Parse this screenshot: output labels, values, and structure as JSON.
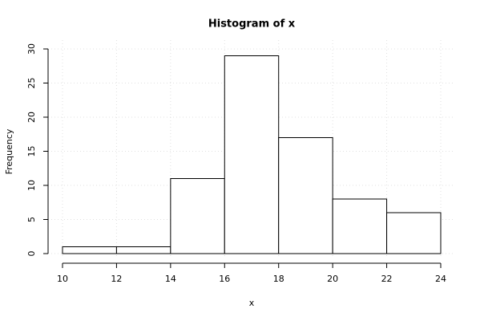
{
  "chart_data": {
    "type": "histogram",
    "title": "Histogram of x",
    "x_label": "x",
    "y_label": "Frequency",
    "bins": [
      10,
      12,
      14,
      16,
      18,
      20,
      22,
      24
    ],
    "values": [
      1,
      1,
      11,
      29,
      17,
      8,
      6
    ],
    "xlim": [
      10,
      24
    ],
    "xticks": [
      10,
      12,
      14,
      16,
      18,
      20,
      22,
      24
    ],
    "ylim": [
      0,
      30
    ],
    "yticks": [
      0,
      5,
      10,
      15,
      20,
      25,
      30
    ],
    "grid": true,
    "color": "#ffffff"
  }
}
